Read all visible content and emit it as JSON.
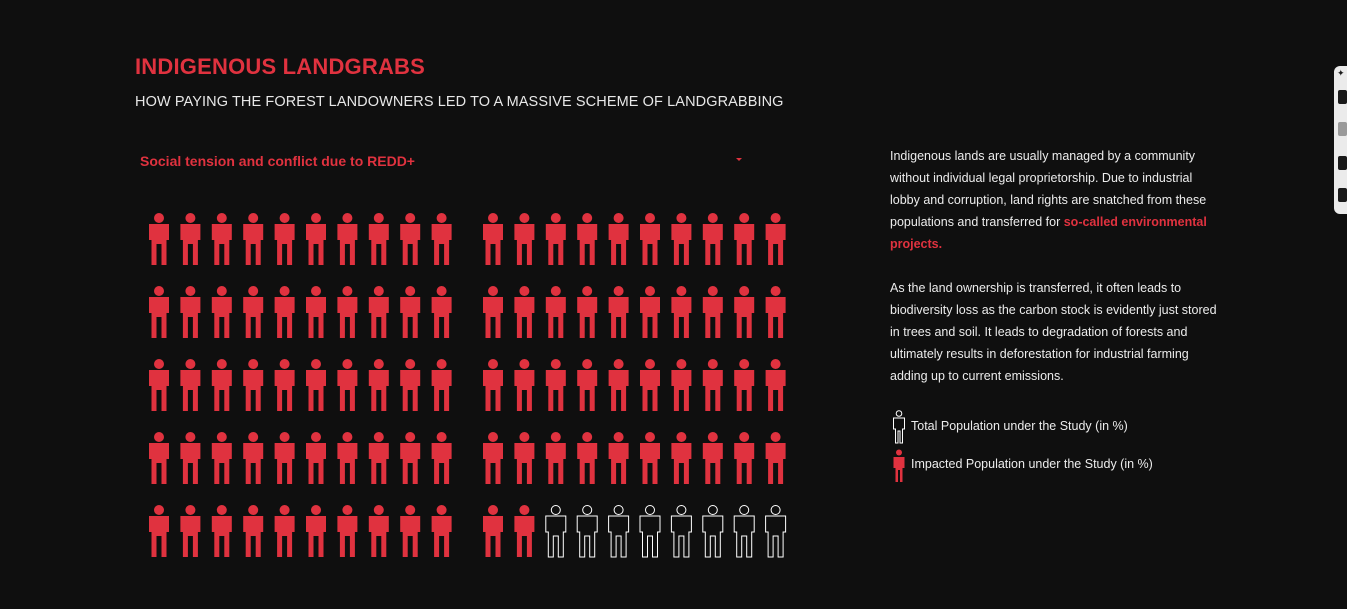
{
  "header": {
    "title": "INDIGENOUS LANDGRABS",
    "subtitle": "HOW PAYING THE FOREST LANDOWNERS LED TO A MASSIVE SCHEME OF LANDGRABBING"
  },
  "dropdown": {
    "selected": "Social tension and conflict due to REDD+"
  },
  "description": {
    "para1_text": "Indigenous lands are usually managed by a community without individual legal proprietorship. Due to industrial lobby and corruption, land rights are snatched from these populations and transferred for",
    "para1_highlight": "so-called environmental projects.",
    "para2": "As the land ownership is transferred, it often leads to biodiversity loss as the carbon stock is evidently just stored in trees and soil. It leads to degradation of forests and ultimately results in deforestation for industrial farming adding up to current emissions."
  },
  "legend": {
    "total_label": "Total Population under the Study (in %)",
    "impacted_label": "Impacted Population under the Study (in %)"
  },
  "chart_data": {
    "type": "isotype",
    "total_percent": 100,
    "impacted_percent": 92,
    "colors": {
      "impacted": "#e0323f",
      "total": "#ffffff",
      "background": "#0f0f0f"
    }
  },
  "icons": {
    "person": "person-icon",
    "caret": "chevron-down-icon"
  }
}
